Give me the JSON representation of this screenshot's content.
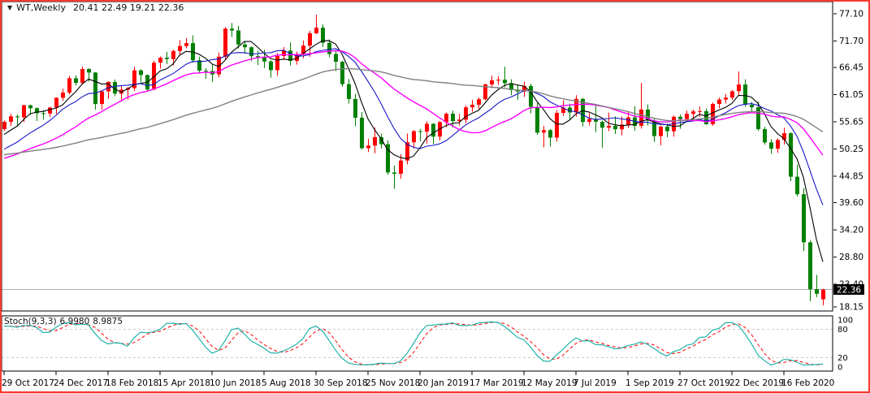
{
  "header": {
    "dropdown_glyph": "▼",
    "symbol": "WT,Weekly",
    "ohlc": "20.41 22.49 19.21 22.36"
  },
  "indicator": {
    "name": "Stoch(9,3,3)",
    "value_main": "6.9980",
    "value_signal": "8.9875"
  },
  "chart_data": {
    "type": "candlestick",
    "symbol": "WT",
    "timeframe": "Weekly",
    "title": "WT,Weekly 20.41 22.49 19.21 22.36",
    "ylim": [
      18.15,
      77.1
    ],
    "grid": false,
    "current_price": "22.36",
    "price_axis_labels": [
      "77.10",
      "71.70",
      "66.45",
      "61.05",
      "55.65",
      "50.25",
      "44.85",
      "39.60",
      "34.20",
      "28.80",
      "23.40",
      "18.15"
    ],
    "x_labels": [
      "29 Oct 2017",
      "24 Dec 2017",
      "18 Feb 2018",
      "15 Apr 2018",
      "10 Jun 2018",
      "5 Aug 2018",
      "30 Sep 2018",
      "25 Nov 2018",
      "20 Jan 2019",
      "17 Mar 2019",
      "12 May 2019",
      "7 Jul 2019",
      "1 Sep 2019",
      "27 Oct 2019",
      "22 Dec 2019",
      "16 Feb 2020"
    ],
    "x_label_every_n_bars": 8,
    "colors": {
      "bull": "#ff0000",
      "bear": "#008000",
      "frame": "#f43b2e",
      "pane_border": "#000000",
      "current_price_line": "#b4b4b4",
      "price_tag_bg": "#000000",
      "price_tag_text": "#ffffff"
    },
    "candles": [
      [
        54.2,
        55.9,
        53.9,
        55.64
      ],
      [
        55.64,
        57.2,
        54.81,
        56.74
      ],
      [
        56.74,
        57.1,
        55.0,
        56.55
      ],
      [
        56.55,
        59.05,
        55.6,
        58.95
      ],
      [
        58.95,
        59.05,
        57.0,
        58.36
      ],
      [
        58.36,
        58.5,
        55.82,
        57.36
      ],
      [
        57.36,
        58.0,
        56.09,
        57.3
      ],
      [
        57.3,
        58.6,
        56.6,
        58.47
      ],
      [
        58.47,
        60.51,
        57.2,
        60.42
      ],
      [
        60.42,
        62.21,
        59.8,
        61.44
      ],
      [
        61.44,
        64.77,
        61.1,
        64.3
      ],
      [
        64.3,
        64.89,
        62.85,
        63.37
      ],
      [
        63.37,
        66.66,
        63.0,
        66.14
      ],
      [
        66.14,
        66.3,
        63.67,
        65.45
      ],
      [
        65.45,
        65.5,
        58.07,
        59.2
      ],
      [
        59.2,
        61.9,
        58.1,
        61.68
      ],
      [
        61.68,
        63.73,
        60.2,
        63.55
      ],
      [
        63.55,
        64.04,
        60.75,
        61.25
      ],
      [
        61.25,
        62.8,
        59.95,
        62.04
      ],
      [
        62.04,
        62.54,
        60.08,
        62.34
      ],
      [
        62.34,
        66.55,
        61.8,
        65.88
      ],
      [
        65.88,
        66.05,
        63.5,
        64.94
      ],
      [
        64.94,
        65.0,
        61.81,
        62.06
      ],
      [
        62.06,
        67.76,
        61.9,
        67.39
      ],
      [
        67.39,
        68.64,
        66.2,
        68.38
      ],
      [
        68.38,
        69.56,
        67.1,
        68.1
      ],
      [
        68.1,
        69.97,
        66.85,
        69.72
      ],
      [
        69.72,
        71.89,
        69.0,
        70.7
      ],
      [
        70.7,
        72.3,
        70.25,
        71.28
      ],
      [
        71.28,
        72.83,
        67.4,
        67.88
      ],
      [
        67.88,
        68.6,
        65.4,
        65.81
      ],
      [
        65.81,
        66.3,
        64.22,
        65.74
      ],
      [
        65.74,
        67.1,
        63.59,
        65.06
      ],
      [
        65.06,
        69.38,
        64.5,
        68.58
      ],
      [
        68.58,
        74.46,
        67.9,
        74.15
      ],
      [
        74.15,
        75.27,
        72.5,
        73.8
      ],
      [
        73.8,
        74.7,
        70.2,
        71.01
      ],
      [
        71.01,
        71.6,
        69.2,
        70.46
      ],
      [
        70.46,
        70.6,
        67.69,
        68.69
      ],
      [
        68.69,
        69.8,
        66.92,
        68.49
      ],
      [
        68.49,
        69.92,
        66.32,
        67.63
      ],
      [
        67.63,
        67.9,
        64.43,
        65.91
      ],
      [
        65.91,
        69.31,
        64.8,
        68.72
      ],
      [
        68.72,
        70.5,
        67.9,
        69.8
      ],
      [
        69.8,
        71.4,
        66.86,
        67.75
      ],
      [
        67.75,
        69.6,
        67.0,
        68.99
      ],
      [
        68.99,
        71.8,
        68.3,
        70.78
      ],
      [
        70.78,
        73.73,
        68.58,
        73.25
      ],
      [
        73.25,
        76.9,
        73.05,
        74.34
      ],
      [
        74.34,
        75.0,
        70.51,
        71.34
      ],
      [
        71.34,
        72.0,
        68.47,
        69.12
      ],
      [
        69.12,
        69.9,
        65.74,
        67.59
      ],
      [
        67.59,
        67.8,
        62.62,
        63.14
      ],
      [
        63.14,
        64.15,
        59.26,
        60.19
      ],
      [
        60.19,
        61.2,
        54.75,
        56.46
      ],
      [
        56.46,
        57.6,
        50.15,
        50.42
      ],
      [
        50.42,
        52.3,
        49.65,
        50.93
      ],
      [
        50.93,
        54.55,
        49.41,
        52.61
      ],
      [
        52.61,
        53.3,
        50.35,
        51.2
      ],
      [
        51.2,
        52.0,
        45.13,
        45.59
      ],
      [
        45.59,
        47.0,
        42.36,
        45.33
      ],
      [
        45.33,
        49.2,
        44.35,
        47.96
      ],
      [
        47.96,
        53.31,
        47.2,
        51.59
      ],
      [
        51.59,
        54.0,
        50.38,
        53.8
      ],
      [
        53.8,
        54.24,
        51.8,
        53.69
      ],
      [
        53.69,
        55.75,
        51.33,
        55.26
      ],
      [
        55.26,
        55.4,
        51.23,
        52.72
      ],
      [
        52.72,
        55.8,
        51.9,
        55.59
      ],
      [
        55.59,
        57.5,
        54.6,
        57.26
      ],
      [
        57.26,
        57.88,
        54.52,
        55.8
      ],
      [
        55.8,
        57.2,
        54.9,
        56.07
      ],
      [
        56.07,
        58.9,
        55.4,
        58.52
      ],
      [
        58.52,
        60.0,
        57.65,
        59.04
      ],
      [
        59.04,
        60.5,
        58.2,
        60.14
      ],
      [
        60.14,
        63.25,
        59.9,
        63.08
      ],
      [
        63.08,
        64.79,
        62.3,
        63.89
      ],
      [
        63.89,
        64.72,
        63.0,
        64.0
      ],
      [
        64.0,
        66.6,
        62.5,
        63.3
      ],
      [
        63.3,
        64.1,
        60.95,
        61.94
      ],
      [
        61.94,
        62.99,
        60.04,
        61.66
      ],
      [
        61.66,
        63.64,
        60.6,
        62.76
      ],
      [
        62.76,
        63.21,
        57.33,
        58.63
      ],
      [
        58.63,
        59.4,
        53.05,
        53.5
      ],
      [
        53.5,
        54.84,
        50.6,
        53.99
      ],
      [
        53.99,
        54.2,
        50.72,
        52.51
      ],
      [
        52.51,
        57.98,
        51.7,
        57.43
      ],
      [
        57.43,
        59.93,
        56.8,
        58.47
      ],
      [
        58.47,
        59.25,
        56.0,
        57.51
      ],
      [
        57.51,
        60.94,
        56.7,
        60.21
      ],
      [
        60.21,
        60.4,
        54.72,
        55.63
      ],
      [
        55.63,
        57.4,
        54.9,
        56.2
      ],
      [
        56.2,
        58.82,
        53.59,
        55.66
      ],
      [
        55.66,
        55.9,
        50.52,
        54.5
      ],
      [
        54.5,
        57.47,
        53.8,
        54.87
      ],
      [
        54.87,
        56.7,
        53.24,
        54.17
      ],
      [
        54.17,
        56.75,
        52.96,
        55.1
      ],
      [
        55.1,
        57.76,
        54.4,
        56.52
      ],
      [
        56.52,
        58.76,
        53.9,
        54.85
      ],
      [
        54.85,
        63.38,
        54.3,
        58.09
      ],
      [
        58.09,
        59.1,
        54.93,
        55.91
      ],
      [
        55.91,
        56.3,
        51.64,
        52.81
      ],
      [
        52.81,
        54.93,
        51.0,
        54.7
      ],
      [
        54.7,
        55.3,
        52.61,
        53.78
      ],
      [
        53.78,
        56.9,
        52.71,
        56.66
      ],
      [
        56.66,
        57.1,
        54.27,
        56.2
      ],
      [
        56.2,
        57.88,
        55.76,
        57.24
      ],
      [
        57.24,
        58.05,
        55.97,
        57.72
      ],
      [
        57.72,
        58.68,
        56.63,
        57.77
      ],
      [
        57.77,
        58.3,
        55.02,
        55.17
      ],
      [
        55.17,
        59.5,
        54.85,
        59.2
      ],
      [
        59.2,
        60.48,
        58.35,
        60.07
      ],
      [
        60.07,
        61.2,
        59.3,
        60.44
      ],
      [
        60.44,
        61.97,
        60.0,
        61.72
      ],
      [
        61.72,
        65.65,
        60.9,
        63.05
      ],
      [
        63.05,
        64.09,
        58.66,
        59.04
      ],
      [
        59.04,
        59.6,
        57.36,
        58.54
      ],
      [
        58.54,
        59.73,
        53.85,
        54.19
      ],
      [
        54.19,
        54.66,
        51.11,
        51.56
      ],
      [
        51.56,
        52.2,
        49.31,
        50.32
      ],
      [
        50.32,
        52.38,
        49.5,
        52.05
      ],
      [
        52.05,
        54.5,
        51.14,
        53.38
      ],
      [
        53.38,
        53.6,
        43.85,
        44.76
      ],
      [
        44.76,
        47.18,
        40.84,
        41.28
      ],
      [
        41.28,
        42.5,
        30.02,
        31.73
      ],
      [
        31.73,
        32.1,
        20.06,
        22.43
      ],
      [
        22.43,
        25.24,
        20.8,
        21.51
      ],
      [
        20.41,
        22.49,
        19.21,
        22.36
      ]
    ],
    "moving_averages": [
      {
        "period": 5,
        "color": "#000000",
        "width": 1.1,
        "seed": 52.5
      },
      {
        "period": 10,
        "color": "#1515c8",
        "width": 1.1,
        "seed": 49.6
      },
      {
        "period": 20,
        "color": "#ff00ff",
        "width": 1.4,
        "seed": 48.0
      },
      {
        "period": 50,
        "color": "#808080",
        "width": 1.4,
        "seed": 49.0
      }
    ],
    "stochastic": {
      "k_period": 9,
      "slowing": 3,
      "d_period": 3,
      "last_main": "6.9980",
      "last_signal": "8.9875",
      "scale_labels": [
        "100",
        "80",
        "20",
        "0"
      ],
      "levels": [
        80,
        20
      ],
      "main_color": "#20b2aa",
      "signal_color": "#ff0000",
      "level_color": "#c8c8c8"
    }
  }
}
